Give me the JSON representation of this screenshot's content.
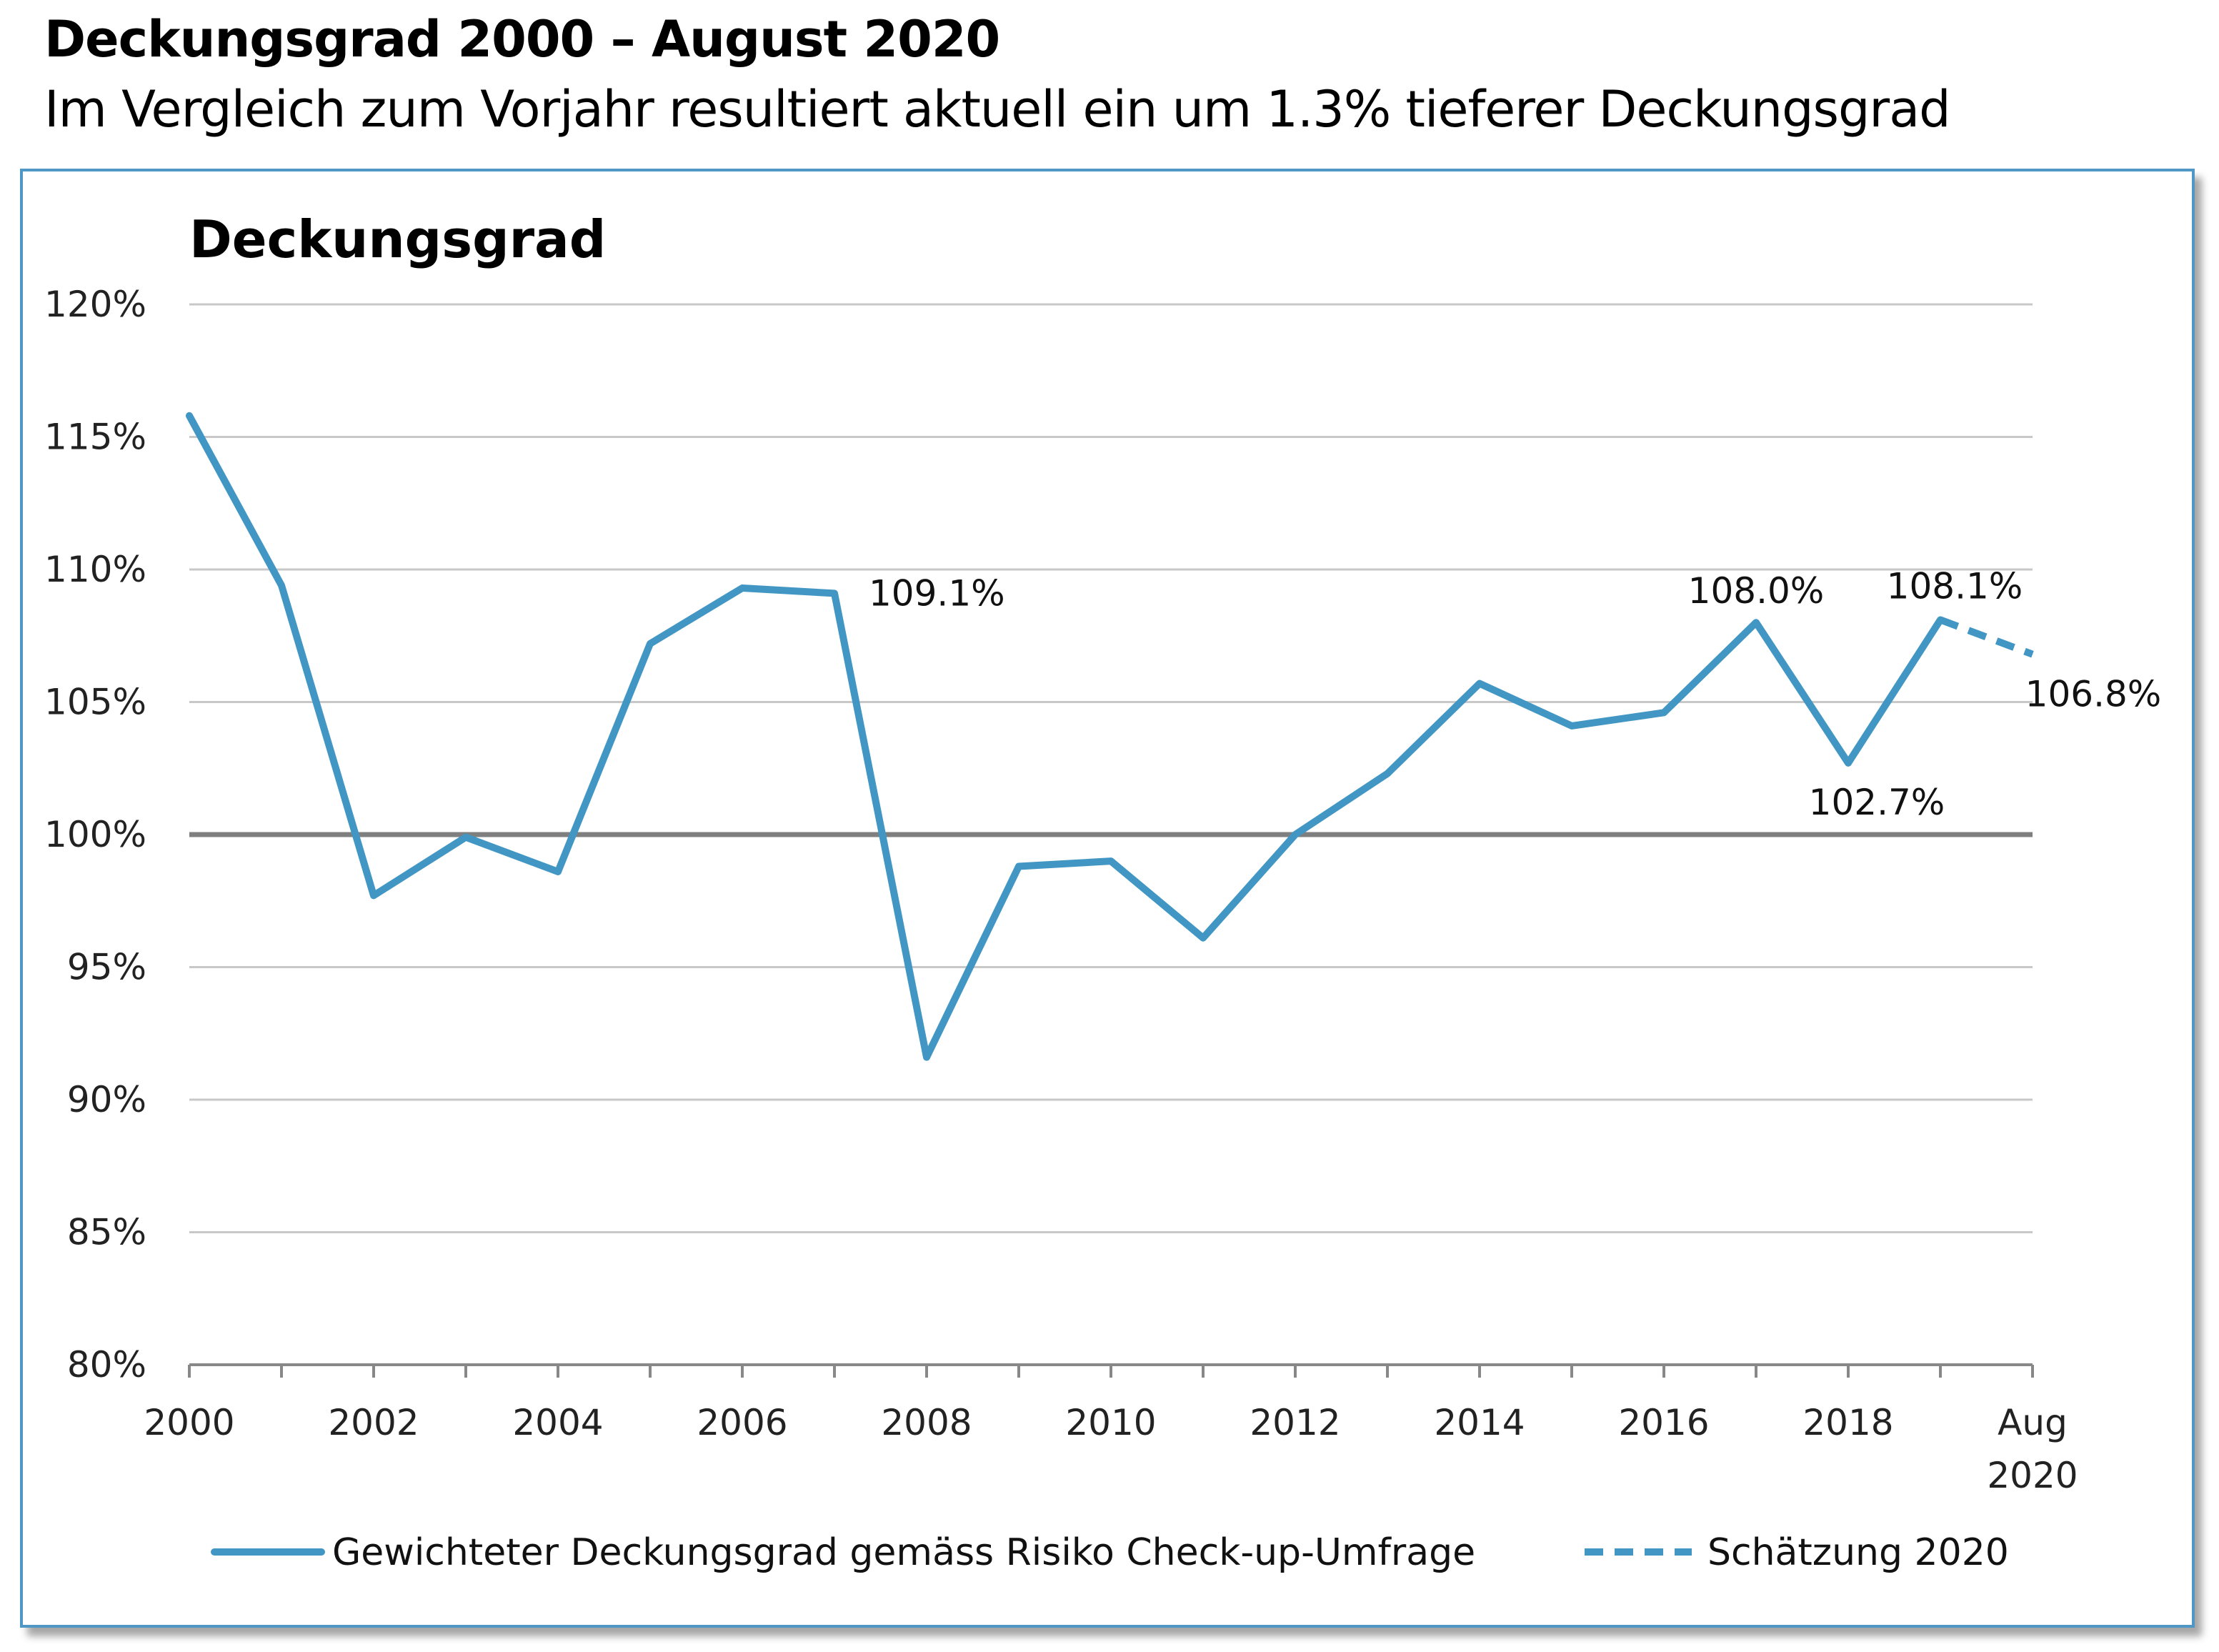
{
  "heading": "Deckungsgrad 2000 – August 2020",
  "subheading": "Im Vergleich zum Vorjahr resultiert aktuell ein um 1.3% tieferer Deckungsgrad",
  "colors": {
    "series": "#4196c4",
    "grid": "#c8c8c8",
    "reference_line": "#7f7f7f",
    "frame_border": "#4f97c4",
    "axis": "#888888"
  },
  "chart_data": {
    "type": "line",
    "title": "Deckungsgrad",
    "ylim": [
      80,
      120
    ],
    "y_ticks": [
      "80%",
      "85%",
      "90%",
      "95%",
      "100%",
      "105%",
      "110%",
      "115%",
      "120%"
    ],
    "x_tick_labels": [
      "2000",
      "2002",
      "2004",
      "2006",
      "2008",
      "2010",
      "2012",
      "2014",
      "2016",
      "2018",
      "Aug 2020"
    ],
    "x": [
      "2000",
      "2001",
      "2002",
      "2003",
      "2004",
      "2005",
      "2006",
      "2007",
      "2008",
      "2009",
      "2010",
      "2011",
      "2012",
      "2013",
      "2014",
      "2015",
      "2016",
      "2017",
      "2018",
      "2019",
      "Aug 2020"
    ],
    "reference_line": 100,
    "grid": true,
    "legend_position": "bottom",
    "series": [
      {
        "name": "Gewichteter Deckungsgrad gemäss Risiko Check-up-Umfrage",
        "style": "solid",
        "x": [
          "2000",
          "2001",
          "2002",
          "2003",
          "2004",
          "2005",
          "2006",
          "2007",
          "2008",
          "2009",
          "2010",
          "2011",
          "2012",
          "2013",
          "2014",
          "2015",
          "2016",
          "2017",
          "2018",
          "2019"
        ],
        "values": [
          115.8,
          109.4,
          97.7,
          99.9,
          98.6,
          107.2,
          109.3,
          109.1,
          91.6,
          98.8,
          99.0,
          96.1,
          100.0,
          102.3,
          105.7,
          104.1,
          104.6,
          108.0,
          102.7,
          108.1
        ]
      },
      {
        "name": "Schätzung 2020",
        "style": "dashed",
        "x": [
          "2019",
          "Aug 2020"
        ],
        "values": [
          108.1,
          106.8
        ]
      }
    ],
    "annotations": [
      {
        "x": "2007",
        "y": 109.1,
        "text": "109.1%"
      },
      {
        "x": "2017",
        "y": 108.0,
        "text": "108.0%"
      },
      {
        "x": "2019",
        "y": 108.1,
        "text": "108.1%"
      },
      {
        "x": "Aug 2020",
        "y": 106.8,
        "text": "106.8%"
      },
      {
        "x": "2018",
        "y": 102.7,
        "text": "102.7%"
      }
    ]
  }
}
